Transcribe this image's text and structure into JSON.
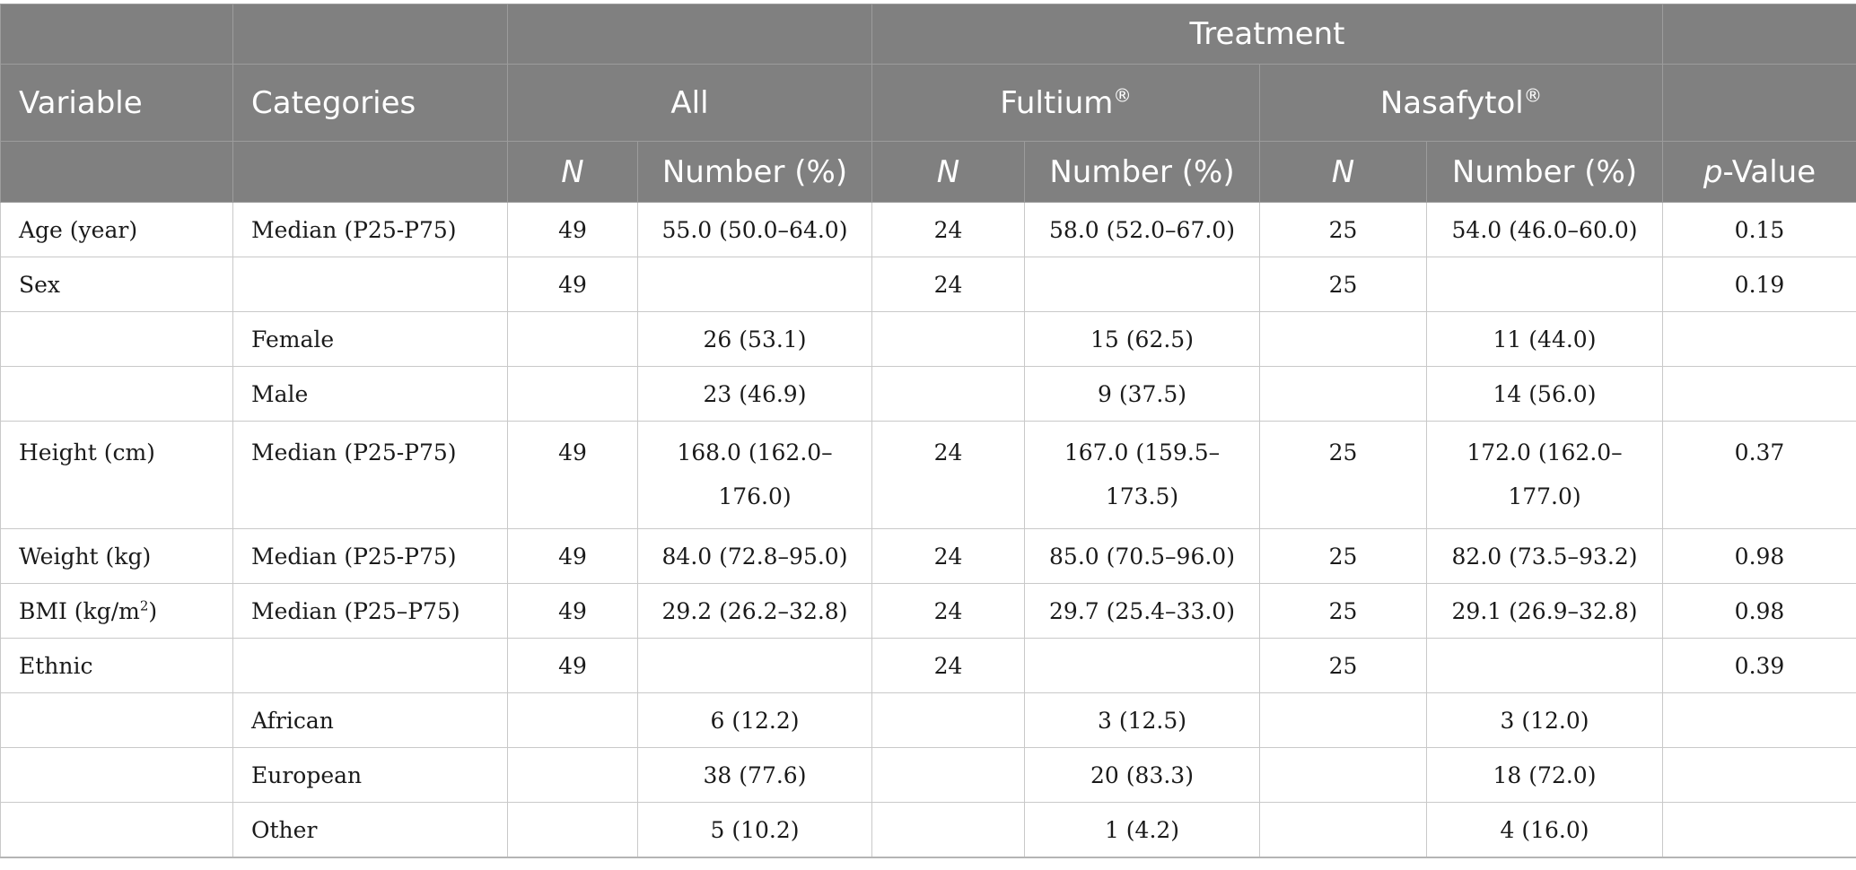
{
  "header": {
    "row1": {
      "treatment": "Treatment"
    },
    "row2": {
      "variable": "Variable",
      "categories": "Categories",
      "all": "All",
      "fultium": "Fultium",
      "nasafytol": "Nasafytol",
      "registered_mark": "®"
    },
    "row3": {
      "n": "N",
      "number_pct": "Number (%)",
      "p_italic": "p",
      "p_rest": "-Value"
    }
  },
  "rows": [
    {
      "variable": "Age (year)",
      "category": "Median (P25-P75)",
      "all_n": "49",
      "all_val": "55.0 (50.0–64.0)",
      "f_n": "24",
      "f_val": "58.0 (52.0–67.0)",
      "n_n": "25",
      "n_val": "54.0 (46.0–60.0)",
      "p": "0.15"
    },
    {
      "variable": "Sex",
      "category": "",
      "all_n": "49",
      "all_val": "",
      "f_n": "24",
      "f_val": "",
      "n_n": "25",
      "n_val": "",
      "p": "0.19"
    },
    {
      "variable": "",
      "category": "Female",
      "all_n": "",
      "all_val": "26 (53.1)",
      "f_n": "",
      "f_val": "15 (62.5)",
      "n_n": "",
      "n_val": "11 (44.0)",
      "p": ""
    },
    {
      "variable": "",
      "category": "Male",
      "all_n": "",
      "all_val": "23 (46.9)",
      "f_n": "",
      "f_val": "9 (37.5)",
      "n_n": "",
      "n_val": "14 (56.0)",
      "p": ""
    },
    {
      "variable": "Height (cm)",
      "category": "Median (P25-P75)",
      "all_n": "49",
      "all_val": "168.0 (162.0–176.0)",
      "f_n": "24",
      "f_val": "167.0 (159.5–173.5)",
      "n_n": "25",
      "n_val": "172.0 (162.0–177.0)",
      "p": "0.37"
    },
    {
      "variable": "Weight (kg)",
      "category": "Median (P25-P75)",
      "all_n": "49",
      "all_val": "84.0 (72.8–95.0)",
      "f_n": "24",
      "f_val": "85.0 (70.5–96.0)",
      "n_n": "25",
      "n_val": "82.0 (73.5–93.2)",
      "p": "0.98"
    },
    {
      "variable": "BMI (kg/m",
      "variable_sup": "2",
      "variable_suffix": ")",
      "category": "Median (P25–P75)",
      "all_n": "49",
      "all_val": "29.2 (26.2–32.8)",
      "f_n": "24",
      "f_val": "29.7 (25.4–33.0)",
      "n_n": "25",
      "n_val": "29.1 (26.9–32.8)",
      "p": "0.98"
    },
    {
      "variable": "Ethnic",
      "category": "",
      "all_n": "49",
      "all_val": "",
      "f_n": "24",
      "f_val": "",
      "n_n": "25",
      "n_val": "",
      "p": "0.39"
    },
    {
      "variable": "",
      "category": "African",
      "all_n": "",
      "all_val": "6 (12.2)",
      "f_n": "",
      "f_val": "3 (12.5)",
      "n_n": "",
      "n_val": "3 (12.0)",
      "p": ""
    },
    {
      "variable": "",
      "category": "European",
      "all_n": "",
      "all_val": "38 (77.6)",
      "f_n": "",
      "f_val": "20 (83.3)",
      "n_n": "",
      "n_val": "18 (72.0)",
      "p": ""
    },
    {
      "variable": "",
      "category": "Other",
      "all_n": "",
      "all_val": "5 (10.2)",
      "f_n": "",
      "f_val": "1 (4.2)",
      "n_n": "",
      "n_val": "4 (16.0)",
      "p": ""
    }
  ],
  "colors": {
    "header_background": "#808080",
    "header_text": "#ffffff",
    "body_grid": "#c9c9c9"
  }
}
